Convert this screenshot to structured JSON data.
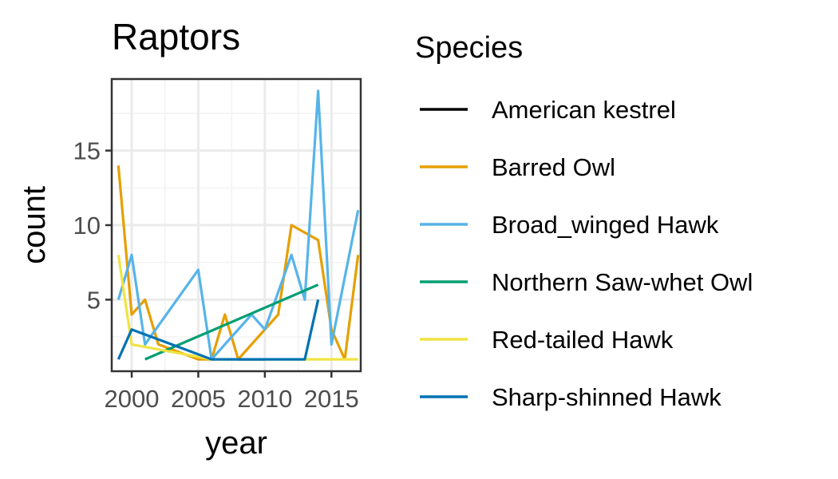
{
  "chart_data": {
    "type": "line",
    "title": "Raptors",
    "xlabel": "year",
    "ylabel": "count",
    "xlim": [
      1998.5,
      2017.2
    ],
    "ylim": [
      0.2,
      19.8
    ],
    "x_ticks": [
      2000,
      2005,
      2010,
      2015
    ],
    "y_ticks": [
      5,
      10,
      15
    ],
    "grid": true,
    "legend": {
      "title": "Species",
      "position": "right"
    },
    "series": [
      {
        "name": "American kestrel",
        "color": "#000000",
        "points": [
          [
            2008,
            1
          ],
          [
            2010,
            1
          ]
        ]
      },
      {
        "name": "Barred Owl",
        "color": "#E69F00",
        "points": [
          [
            1999,
            14
          ],
          [
            2000,
            4
          ],
          [
            2001,
            5
          ],
          [
            2002,
            2
          ],
          [
            2005,
            1
          ],
          [
            2006,
            1
          ],
          [
            2007,
            4
          ],
          [
            2008,
            1
          ],
          [
            2011,
            4
          ],
          [
            2012,
            10
          ],
          [
            2014,
            9
          ],
          [
            2015,
            3
          ],
          [
            2016,
            1
          ],
          [
            2017,
            8
          ]
        ]
      },
      {
        "name": "Broad_winged Hawk",
        "color": "#56B4E9",
        "points": [
          [
            1999,
            5
          ],
          [
            2000,
            8
          ],
          [
            2001,
            2
          ],
          [
            2005,
            7
          ],
          [
            2006,
            1
          ],
          [
            2009,
            4
          ],
          [
            2010,
            3
          ],
          [
            2012,
            8
          ],
          [
            2013,
            5
          ],
          [
            2014,
            19
          ],
          [
            2015,
            2
          ],
          [
            2017,
            11
          ]
        ]
      },
      {
        "name": "Northern Saw-whet Owl",
        "color": "#009E73",
        "points": [
          [
            2001,
            1
          ],
          [
            2014,
            6
          ]
        ]
      },
      {
        "name": "Red-tailed Hawk",
        "color": "#F0E442",
        "points": [
          [
            1999,
            8
          ],
          [
            2000,
            2
          ],
          [
            2006,
            1
          ],
          [
            2017,
            1
          ]
        ]
      },
      {
        "name": "Sharp-shinned Hawk",
        "color": "#0072B2",
        "points": [
          [
            1999,
            1
          ],
          [
            2000,
            3
          ],
          [
            2003,
            2
          ],
          [
            2006,
            1
          ],
          [
            2013,
            1
          ],
          [
            2014,
            5
          ]
        ]
      }
    ]
  }
}
